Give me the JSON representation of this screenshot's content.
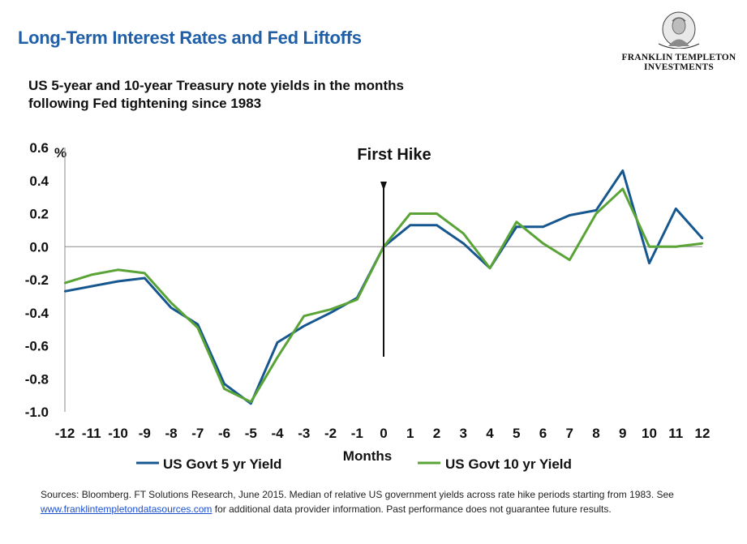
{
  "header": {
    "title": "Long-Term Interest Rates and Fed Liftoffs",
    "subtitle_line1": "US 5-year and 10-year Treasury note yields in the months",
    "subtitle_line2": "following Fed tightening since 1983"
  },
  "logo": {
    "line1": "FRANKLIN TEMPLETON",
    "line2": "INVESTMENTS"
  },
  "chart_data": {
    "type": "line",
    "title": "Long-Term Interest Rates and Fed Liftoffs",
    "subtitle": "US 5-year and 10-year Treasury note yields in the months following Fed tightening since 1983",
    "xlabel": "Months",
    "ylabel": "%",
    "x": [
      -12,
      -11,
      -10,
      -9,
      -8,
      -7,
      -6,
      -5,
      -4,
      -3,
      -2,
      -1,
      0,
      1,
      2,
      3,
      4,
      5,
      6,
      7,
      8,
      9,
      10,
      11,
      12
    ],
    "x_tick_labels": [
      "-12",
      "-11",
      "-10",
      "-9",
      "-8",
      "-7",
      "-6",
      "-5",
      "-4",
      "-3",
      "-2",
      "-1",
      "0",
      "1",
      "2",
      "3",
      "4",
      "5",
      "6",
      "7",
      "8",
      "9",
      "10",
      "11",
      "12"
    ],
    "ylim": [
      -1.0,
      0.6
    ],
    "y_ticks": [
      0.6,
      0.4,
      0.2,
      0.0,
      -0.2,
      -0.4,
      -0.6,
      -0.8,
      -1.0
    ],
    "y_tick_labels": [
      "0.6",
      "0.4",
      "0.2",
      "0.0",
      "-0.2",
      "-0.4",
      "-0.6",
      "-0.8",
      "-1.0"
    ],
    "grid": false,
    "legend_position": "bottom",
    "series": [
      {
        "name": "US Govt 5 yr Yield",
        "color": "#17578f",
        "values": [
          -0.27,
          -0.24,
          -0.21,
          -0.19,
          -0.37,
          -0.47,
          -0.83,
          -0.95,
          -0.58,
          -0.48,
          -0.4,
          -0.31,
          0.0,
          0.13,
          0.13,
          0.02,
          -0.13,
          0.12,
          0.12,
          0.19,
          0.22,
          0.46,
          -0.1,
          0.23,
          0.05
        ]
      },
      {
        "name": "US Govt 10 yr Yield",
        "color": "#5aa437",
        "values": [
          -0.22,
          -0.17,
          -0.14,
          -0.16,
          -0.34,
          -0.49,
          -0.86,
          -0.94,
          -0.67,
          -0.42,
          -0.38,
          -0.32,
          0.0,
          0.2,
          0.2,
          0.08,
          -0.13,
          0.15,
          0.02,
          -0.08,
          0.2,
          0.35,
          0.0,
          0.0,
          0.02
        ]
      }
    ],
    "annotations": [
      {
        "text": "First Hike",
        "x": 0
      }
    ]
  },
  "footer": {
    "text_before_link": "Sources: Bloomberg. FT Solutions Research, June 2015. Median of relative US government yields across rate hike periods starting from 1983.  See ",
    "link_text": "www.franklintempletondatasources.com",
    "text_after_link": " for additional data provider information. Past performance does not guarantee future results."
  }
}
